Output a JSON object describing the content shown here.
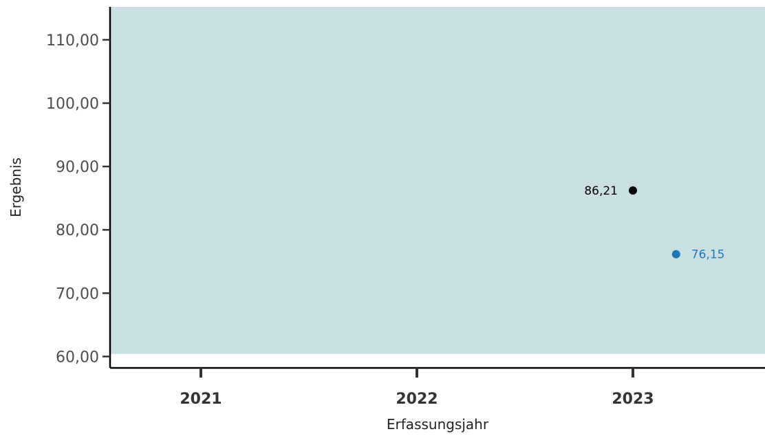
{
  "chart_data": {
    "type": "scatter",
    "xlabel": "Erfassungsjahr",
    "ylabel": "Ergebnis",
    "x_categories": [
      "2021",
      "2022",
      "2023"
    ],
    "y_ticks": [
      "60,00",
      "70,00",
      "80,00",
      "90,00",
      "100,00",
      "110,00"
    ],
    "y_tick_values": [
      60,
      70,
      80,
      90,
      100,
      110
    ],
    "ylim": [
      58.2,
      115.2
    ],
    "band": {
      "from": 60.4,
      "to": 115.2,
      "color": "#cadfe2"
    },
    "grid": false,
    "series": [
      {
        "x": "2023",
        "x_offset": 0,
        "y": 86.21,
        "label": "86,21",
        "color": "#000000",
        "label_side": "left"
      },
      {
        "x": "2023",
        "x_offset": 0.2,
        "y": 76.15,
        "label": "76,15",
        "color": "#1f78b4",
        "label_side": "right"
      }
    ]
  }
}
